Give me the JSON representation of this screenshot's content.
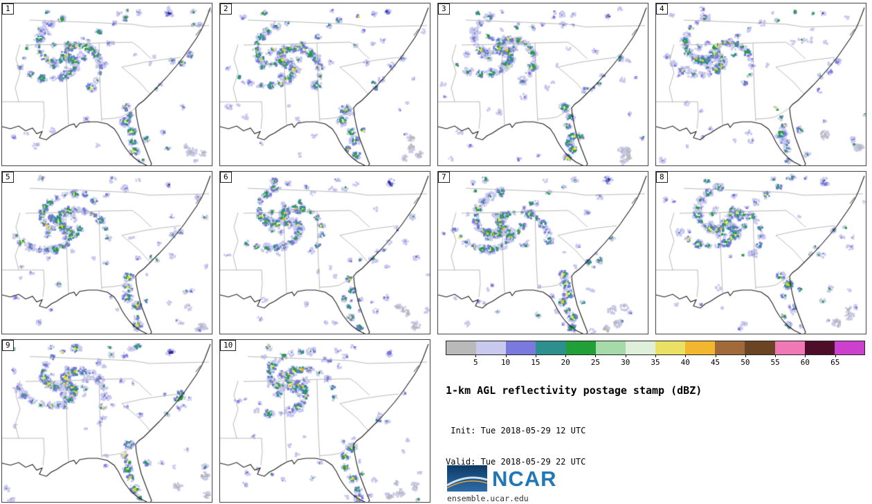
{
  "figure": {
    "title": "1-km AGL reflectivity postage stamp (dBZ)",
    "init_line": " Init: Tue 2018-05-29 12 UTC",
    "valid_line": "Valid: Tue 2018-05-29 22 UTC"
  },
  "panels": [
    {
      "label": "1"
    },
    {
      "label": "2"
    },
    {
      "label": "3"
    },
    {
      "label": "4"
    },
    {
      "label": "5"
    },
    {
      "label": "6"
    },
    {
      "label": "7"
    },
    {
      "label": "8"
    },
    {
      "label": "9"
    },
    {
      "label": "10"
    }
  ],
  "colorbar": {
    "unit": "dBZ",
    "tick_labels": [
      "5",
      "10",
      "15",
      "20",
      "25",
      "30",
      "35",
      "40",
      "45",
      "50",
      "55",
      "60",
      "65"
    ],
    "segment_colors": [
      "#b9b9b9",
      "#c9c9ef",
      "#7a7ade",
      "#2e8f8f",
      "#22a038",
      "#a7daa9",
      "#def0da",
      "#eae164",
      "#f2b72e",
      "#a06a3a",
      "#6b4423",
      "#f078b4",
      "#4e0d28",
      "#cd3fcd"
    ]
  },
  "branding": {
    "org": "NCAR",
    "url": "ensemble.ucar.edu",
    "wordmark_color": "#2277b6",
    "logo_box_colors": [
      "#0d3a66",
      "#2d6da8"
    ]
  }
}
